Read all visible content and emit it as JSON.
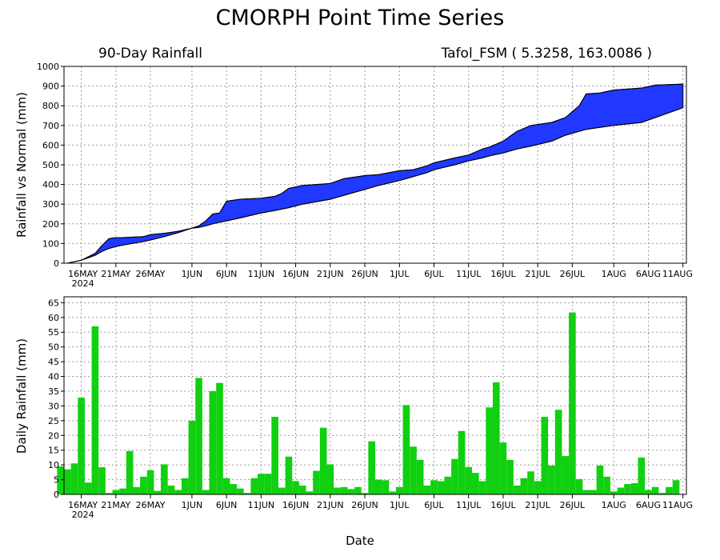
{
  "title": "CMORPH Point Time Series",
  "subtitle_left": "90-Day Rainfall",
  "station_label": "Tafol_FSM ( 5.3258, 163.0086 )",
  "xlabel": "Date",
  "x_tick_labels": [
    "16MAY",
    "21MAY",
    "26MAY",
    "1JUN",
    "6JUN",
    "11JUN",
    "16JUN",
    "21JUN",
    "26JUN",
    "1JUL",
    "6JUL",
    "11JUL",
    "16JUL",
    "21JUL",
    "26JUL",
    "1AUG",
    "6AUG",
    "11AUG"
  ],
  "x_tick_dates": [
    "2024-05-16",
    "2024-05-21",
    "2024-05-26",
    "2024-06-01",
    "2024-06-06",
    "2024-06-11",
    "2024-06-16",
    "2024-06-21",
    "2024-06-26",
    "2024-07-01",
    "2024-07-06",
    "2024-07-11",
    "2024-07-16",
    "2024-07-21",
    "2024-07-26",
    "2024-08-01",
    "2024-08-06",
    "2024-08-11"
  ],
  "year_label": "2024",
  "colors": {
    "actual_fill": "#2038ff",
    "bars": "#10d010",
    "grid": "#9a9a9a",
    "normal_line": "#000000"
  },
  "chart_data": [
    {
      "type": "area",
      "ylabel": "Rainfall vs Normal (mm)",
      "ylim": [
        0,
        1000
      ],
      "yticks": [
        0,
        100,
        200,
        300,
        400,
        500,
        600,
        700,
        800,
        900,
        1000
      ],
      "grid": true,
      "x": [
        "2024-05-14",
        "2024-05-16",
        "2024-05-18",
        "2024-05-19",
        "2024-05-20",
        "2024-05-21",
        "2024-05-22",
        "2024-05-25",
        "2024-05-26",
        "2024-05-28",
        "2024-05-30",
        "2024-06-01",
        "2024-06-02",
        "2024-06-03",
        "2024-06-04",
        "2024-06-05",
        "2024-06-06",
        "2024-06-08",
        "2024-06-11",
        "2024-06-13",
        "2024-06-14",
        "2024-06-15",
        "2024-06-17",
        "2024-06-21",
        "2024-06-23",
        "2024-06-26",
        "2024-06-28",
        "2024-07-01",
        "2024-07-03",
        "2024-07-05",
        "2024-07-06",
        "2024-07-09",
        "2024-07-11",
        "2024-07-13",
        "2024-07-14",
        "2024-07-16",
        "2024-07-18",
        "2024-07-20",
        "2024-07-23",
        "2024-07-25",
        "2024-07-27",
        "2024-07-28",
        "2024-07-30",
        "2024-08-01",
        "2024-08-05",
        "2024-08-07",
        "2024-08-11"
      ],
      "series": [
        {
          "values": [
            0,
            15,
            50,
            90,
            125,
            130,
            130,
            135,
            145,
            152,
            162,
            178,
            190,
            215,
            250,
            255,
            315,
            325,
            330,
            340,
            355,
            380,
            395,
            405,
            430,
            445,
            450,
            470,
            475,
            495,
            510,
            535,
            550,
            580,
            590,
            620,
            670,
            700,
            715,
            740,
            800,
            860,
            865,
            880,
            890,
            905,
            910
          ]
        },
        {
          "values": [
            0,
            15,
            40,
            60,
            75,
            85,
            92,
            110,
            118,
            135,
            155,
            178,
            182,
            190,
            200,
            208,
            215,
            230,
            255,
            268,
            275,
            282,
            300,
            325,
            345,
            375,
            395,
            420,
            440,
            460,
            475,
            500,
            520,
            535,
            545,
            560,
            580,
            595,
            620,
            650,
            670,
            680,
            690,
            700,
            715,
            740,
            790
          ]
        }
      ]
    },
    {
      "type": "bar",
      "ylabel": "Daily Rainfall (mm)",
      "ylim": [
        0,
        67
      ],
      "yticks": [
        0,
        5,
        10,
        15,
        20,
        25,
        30,
        35,
        40,
        45,
        50,
        55,
        60,
        65
      ],
      "grid": true,
      "start_date": "2024-05-13",
      "values": [
        9.5,
        8.5,
        10.5,
        32.8,
        4.0,
        57.0,
        9.2,
        0.5,
        1.5,
        2.0,
        14.7,
        2.5,
        6.0,
        8.2,
        1.2,
        10.2,
        3.0,
        1.5,
        5.5,
        25.0,
        39.5,
        1.5,
        35.0,
        37.8,
        5.5,
        3.5,
        2.0,
        0.5,
        5.5,
        7.0,
        7.0,
        26.3,
        2.3,
        12.8,
        4.5,
        3.0,
        1.0,
        8.0,
        22.6,
        10.2,
        2.3,
        2.5,
        1.8,
        2.5,
        0.5,
        18.0,
        5.0,
        4.8,
        1.0,
        2.5,
        30.3,
        16.2,
        11.7,
        3.0,
        4.8,
        4.5,
        6.0,
        12.0,
        21.5,
        9.3,
        7.3,
        4.5,
        29.5,
        38.0,
        17.6,
        11.7,
        3.0,
        5.5,
        7.8,
        4.5,
        26.3,
        9.8,
        28.7,
        13.0,
        61.7,
        5.2,
        1.5,
        1.5,
        9.8,
        6.0,
        1.0,
        2.3,
        3.5,
        3.8,
        12.5,
        1.5,
        2.5,
        0.5,
        2.5,
        4.8
      ]
    }
  ]
}
